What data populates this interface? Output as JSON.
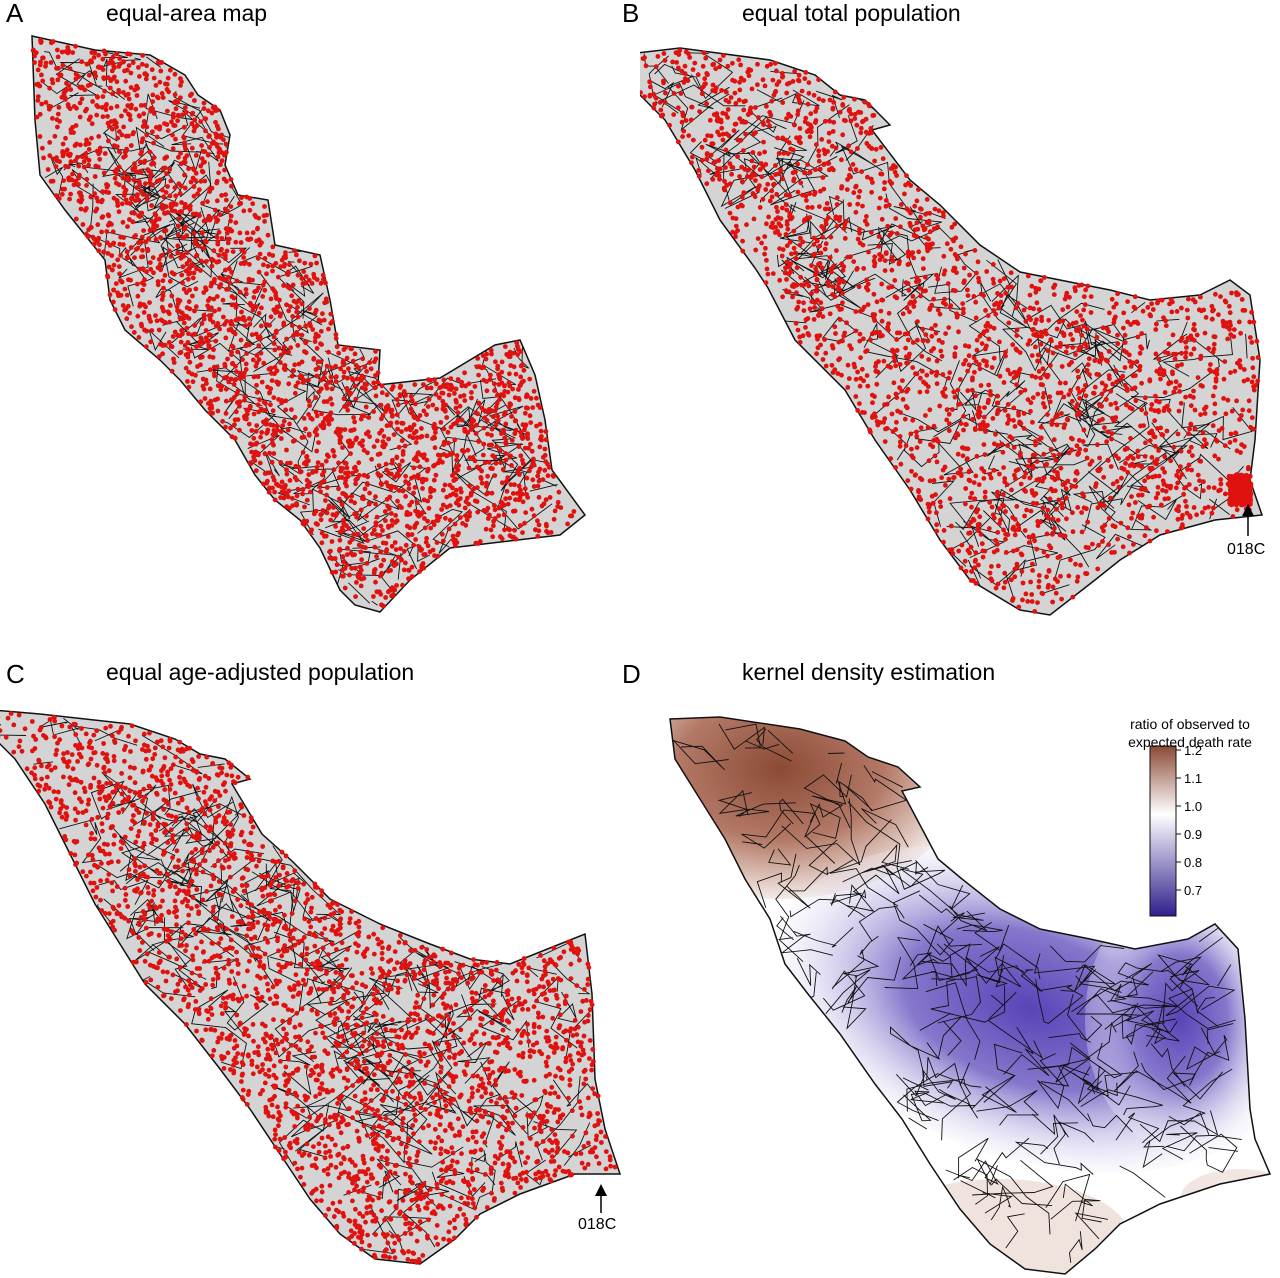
{
  "panels": [
    {
      "id": "A",
      "letter": "A",
      "title": "equal-area map"
    },
    {
      "id": "B",
      "letter": "B",
      "title": "equal total population",
      "annotation": "018C"
    },
    {
      "id": "C",
      "letter": "C",
      "title": "equal age-adjusted population",
      "annotation": "018C"
    },
    {
      "id": "D",
      "letter": "D",
      "title": "kernel density estimation"
    }
  ],
  "legend": {
    "title_line1": "ratio of observed to",
    "title_line2": "expected death rate",
    "ticks": [
      "1.2",
      "1.1",
      "1.0",
      "0.9",
      "0.8",
      "0.7"
    ],
    "colors": {
      "high": "#8b4a36",
      "mid": "#ffffff",
      "low": "#2e1f8c"
    }
  },
  "colors": {
    "point": "#e0120f",
    "region_fill": "#d4d4d4",
    "boundary": "#111111"
  }
}
